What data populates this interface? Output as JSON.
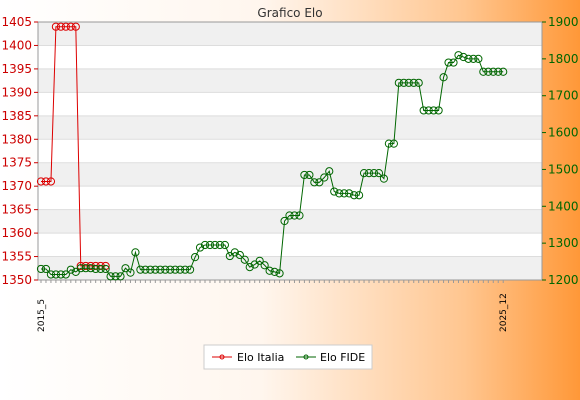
{
  "chart_data": {
    "type": "line",
    "title": "Grafico Elo",
    "xlabel": "",
    "ylabel_left": "",
    "ylabel_right": "",
    "y_left_range": [
      1350,
      1405
    ],
    "y_left_ticks": [
      "1405",
      "1400",
      "1395",
      "1390",
      "1385",
      "1380",
      "1375",
      "1370",
      "1365",
      "1360",
      "1355",
      "1350"
    ],
    "y_right_range": [
      1200,
      1900
    ],
    "y_right_ticks": [
      "1900",
      "1800",
      "1700",
      "1600",
      "1500",
      "1400",
      "1300",
      "1200"
    ],
    "grid": true,
    "legend_position": "bottom-center",
    "x_label_first": "2015_5",
    "x_label_last": "2025_12",
    "series": [
      {
        "name": "Elo Italia",
        "axis": "left",
        "color": "#dd0000",
        "values": [
          1371,
          1371,
          1371,
          1404,
          1404,
          1404,
          1404,
          1404,
          1353,
          1353,
          1353,
          1353,
          1353,
          1353
        ]
      },
      {
        "name": "Elo FIDE",
        "axis": "right",
        "color": "#006600",
        "values": [
          1230,
          1230,
          1215,
          1215,
          1215,
          1215,
          1228,
          1222,
          1232,
          1232,
          1232,
          1230,
          1230,
          1230,
          1210,
          1210,
          1210,
          1232,
          1220,
          1275,
          1228,
          1228,
          1228,
          1228,
          1228,
          1228,
          1228,
          1228,
          1228,
          1228,
          1228,
          1262,
          1288,
          1295,
          1295,
          1295,
          1295,
          1295,
          1265,
          1275,
          1268,
          1255,
          1235,
          1242,
          1252,
          1240,
          1225,
          1222,
          1218,
          1360,
          1375,
          1375,
          1375,
          1485,
          1485,
          1465,
          1465,
          1478,
          1495,
          1440,
          1435,
          1435,
          1435,
          1430,
          1430,
          1490,
          1490,
          1490,
          1490,
          1475,
          1570,
          1570,
          1735,
          1735,
          1735,
          1735,
          1735,
          1660,
          1660,
          1660,
          1660,
          1750,
          1790,
          1790,
          1810,
          1805,
          1800,
          1800,
          1800,
          1765,
          1765,
          1765,
          1765,
          1765
        ]
      }
    ],
    "legend": [
      "Elo Italia",
      "Elo FIDE"
    ]
  }
}
